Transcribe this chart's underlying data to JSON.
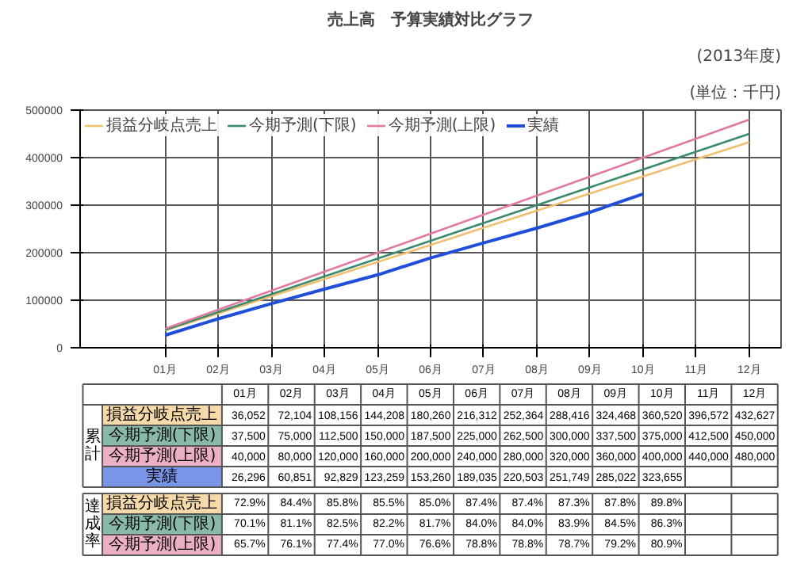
{
  "chart_data": [
    {
      "type": "line",
      "title": "売上高　予算実績対比グラフ",
      "subtitle": "(2013年度)",
      "annotations": [
        "(単位：千円)"
      ],
      "categories": [
        "01月",
        "02月",
        "03月",
        "04月",
        "05月",
        "06月",
        "07月",
        "08月",
        "09月",
        "10月",
        "11月",
        "12月"
      ],
      "ylim": [
        0,
        500000
      ],
      "yticks": [
        0,
        100000,
        200000,
        300000,
        400000,
        500000
      ],
      "grid": true,
      "legend": "top left",
      "marker": "none",
      "line_style": "solid",
      "series": [
        {
          "name": "損益分岐点売上",
          "color": "#f0c070",
          "values": [
            36052,
            72104,
            108156,
            144208,
            180260,
            216312,
            252364,
            288416,
            324468,
            360520,
            396572,
            432627
          ]
        },
        {
          "name": "今期予測(下限)",
          "color": "#3a8a6e",
          "values": [
            37500,
            75000,
            112500,
            150000,
            187500,
            225000,
            262500,
            300000,
            337500,
            375000,
            412500,
            450000
          ]
        },
        {
          "name": "今期予測(上限)",
          "color": "#e07aa0",
          "values": [
            40000,
            80000,
            120000,
            160000,
            200000,
            240000,
            280000,
            320000,
            360000,
            400000,
            440000,
            480000
          ]
        },
        {
          "name": "実績",
          "color": "#1f4fd8",
          "values": [
            26296,
            60851,
            92829,
            123259,
            153260,
            189035,
            220503,
            251749,
            285022,
            323655,
            null,
            null
          ]
        }
      ]
    },
    {
      "type": "heatmap",
      "legend_title": "累計",
      "categories": [
        "01月",
        "02月",
        "03月",
        "04月",
        "05月",
        "06月",
        "07月",
        "08月",
        "09月",
        "10月",
        "11月",
        "12月"
      ],
      "y_categories": [
        "損益分岐点売上",
        "今期予測(下限)",
        "今期予測(上限)",
        "実績"
      ],
      "cells": [
        [
          36052,
          72104,
          108156,
          144208,
          180260,
          216312,
          252364,
          288416,
          324468,
          360520,
          396572,
          432627
        ],
        [
          37500,
          75000,
          112500,
          150000,
          187500,
          225000,
          262500,
          300000,
          337500,
          375000,
          412500,
          450000
        ],
        [
          40000,
          80000,
          120000,
          160000,
          200000,
          240000,
          280000,
          320000,
          360000,
          400000,
          440000,
          480000
        ],
        [
          26296,
          60851,
          92829,
          123259,
          153260,
          189035,
          220503,
          251749,
          285022,
          323655,
          null,
          null
        ]
      ],
      "cell_labels": [
        [
          "36,052",
          "72,104",
          "108,156",
          "144,208",
          "180,260",
          "216,312",
          "252,364",
          "288,416",
          "324,468",
          "360,520",
          "396,572",
          "432,627"
        ],
        [
          "37,500",
          "75,000",
          "112,500",
          "150,000",
          "187,500",
          "225,000",
          "262,500",
          "300,000",
          "337,500",
          "375,000",
          "412,500",
          "450,000"
        ],
        [
          "40,000",
          "80,000",
          "120,000",
          "160,000",
          "200,000",
          "240,000",
          "280,000",
          "320,000",
          "360,000",
          "400,000",
          "440,000",
          "480,000"
        ],
        [
          "26,296",
          "60,851",
          "92,829",
          "123,259",
          "153,260",
          "189,035",
          "220,503",
          "251,749",
          "285,022",
          "323,655",
          null,
          null
        ]
      ]
    },
    {
      "type": "heatmap",
      "legend_title": "達成率",
      "tick_labels": "y",
      "categories": [
        null,
        null,
        null,
        null,
        null,
        null,
        null,
        null,
        null,
        null,
        null,
        null
      ],
      "y_categories": [
        "損益分岐点売上",
        "今期予測(下限)",
        "今期予測(上限)"
      ],
      "cells": [
        [
          72.9,
          84.4,
          85.8,
          85.5,
          85.0,
          87.4,
          87.4,
          87.3,
          87.8,
          89.8,
          null,
          null
        ],
        [
          70.1,
          81.1,
          82.5,
          82.2,
          81.7,
          84.0,
          84.0,
          83.9,
          84.5,
          86.3,
          null,
          null
        ],
        [
          65.7,
          76.1,
          77.4,
          77.0,
          76.6,
          78.8,
          78.8,
          78.7,
          79.2,
          80.9,
          null,
          null
        ]
      ],
      "cell_labels": [
        [
          "72.9%",
          "84.4%",
          "85.8%",
          "85.5%",
          "85.0%",
          "87.4%",
          "87.4%",
          "87.3%",
          "87.8%",
          "89.8%",
          null,
          null
        ],
        [
          "70.1%",
          "81.1%",
          "82.5%",
          "82.2%",
          "81.7%",
          "84.0%",
          "84.0%",
          "83.9%",
          "84.5%",
          "86.3%",
          null,
          null
        ],
        [
          "65.7%",
          "76.1%",
          "77.4%",
          "77.0%",
          "76.6%",
          "78.8%",
          "78.8%",
          "78.7%",
          "79.2%",
          "80.9%",
          null,
          null
        ]
      ]
    }
  ]
}
